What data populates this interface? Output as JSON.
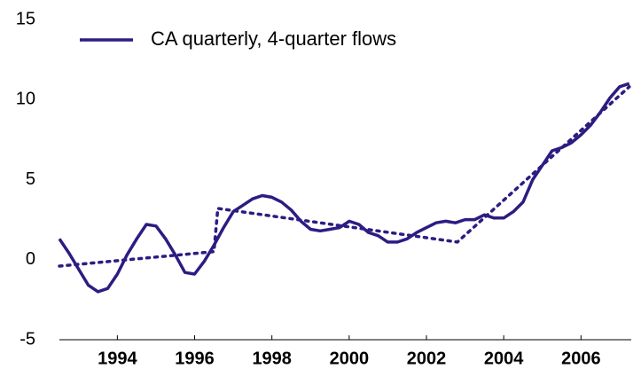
{
  "chart_data": {
    "type": "line",
    "legend": "top-left",
    "xlim": [
      1993,
      2007.8
    ],
    "ylim": [
      -5,
      15
    ],
    "yticks": [
      -5,
      0,
      5,
      10,
      15
    ],
    "xticks": [
      {
        "value": 1994.5,
        "label": "1994"
      },
      {
        "value": 1996.5,
        "label": "1996"
      },
      {
        "value": 1998.5,
        "label": "1998"
      },
      {
        "value": 2000.5,
        "label": "2000"
      },
      {
        "value": 2002.5,
        "label": "2002"
      },
      {
        "value": 2004.5,
        "label": "2004"
      },
      {
        "value": 2006.5,
        "label": "2006"
      }
    ],
    "series": [
      {
        "name": "CA quarterly, 4-quarter flows",
        "color": "#2b1d82",
        "style": "solid",
        "x": [
          1993,
          1993.25,
          1993.5,
          1993.75,
          1994,
          1994.25,
          1994.5,
          1994.75,
          1995,
          1995.25,
          1995.5,
          1995.75,
          1996,
          1996.25,
          1996.5,
          1996.75,
          1997,
          1997.25,
          1997.5,
          1997.75,
          1998,
          1998.25,
          1998.5,
          1998.75,
          1999,
          1999.25,
          1999.5,
          1999.75,
          2000,
          2000.25,
          2000.5,
          2000.75,
          2001,
          2001.25,
          2001.5,
          2001.75,
          2002,
          2002.25,
          2002.5,
          2002.75,
          2003,
          2003.25,
          2003.5,
          2003.75,
          2004,
          2004.25,
          2004.5,
          2004.75,
          2005,
          2005.25,
          2005.5,
          2005.75,
          2006,
          2006.25,
          2006.5,
          2006.75,
          2007,
          2007.25,
          2007.5,
          2007.75
        ],
        "values": [
          1.3,
          0.4,
          -0.6,
          -1.6,
          -2.0,
          -1.8,
          -0.9,
          0.3,
          1.3,
          2.2,
          2.1,
          1.3,
          0.3,
          -0.8,
          -0.9,
          -0.1,
          0.9,
          2.0,
          3.0,
          3.4,
          3.8,
          4.0,
          3.9,
          3.6,
          3.1,
          2.4,
          1.9,
          1.8,
          1.9,
          2.0,
          2.4,
          2.2,
          1.7,
          1.5,
          1.1,
          1.1,
          1.3,
          1.7,
          2.0,
          2.3,
          2.4,
          2.3,
          2.5,
          2.5,
          2.8,
          2.6,
          2.6,
          3.0,
          3.6,
          5.0,
          5.9,
          6.8,
          7.0,
          7.3,
          7.8,
          8.4,
          9.2,
          10.1,
          10.8,
          11.0
        ]
      },
      {
        "color": "#2b1d82",
        "style": "dotted",
        "x": [
          1993,
          1997.0,
          1997.1,
          2003.3,
          2007.75
        ],
        "values": [
          -0.4,
          0.5,
          3.2,
          1.1,
          10.8
        ]
      }
    ]
  }
}
